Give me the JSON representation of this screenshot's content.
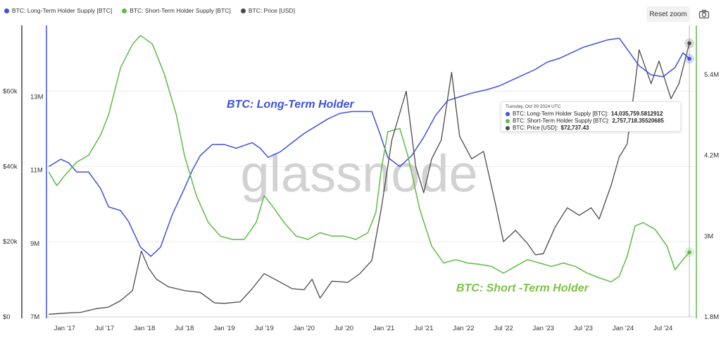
{
  "legend": [
    {
      "label": "BTC: Long-Term Holder Supply [BTC]",
      "color": "#3F51E0"
    },
    {
      "label": "BTC: Short-Term Holder Supply [BTC]",
      "color": "#5DBB46"
    },
    {
      "label": "BTC: Price [USD]",
      "color": "#4a4a4a"
    }
  ],
  "toolbar": {
    "reset_zoom": "Reset zoom",
    "camera_icon": "camera-icon"
  },
  "watermark": "glassnode",
  "annotations": {
    "lth": "BTC: Long-Term Holder",
    "sth": "BTC: Short -Term Holder"
  },
  "tooltip": {
    "date": "Tuesday, Oct 29 2024 UTC",
    "rows": [
      {
        "label": "BTC: Long-Term Holder Supply [BTC]:",
        "value": "14,035,759.5812912",
        "color": "#3F51E0"
      },
      {
        "label": "BTC: Short-Term Holder Supply [BTC]:",
        "value": "2,757,718.35520685",
        "color": "#5DBB46"
      },
      {
        "label": "BTC: Price [USD]:",
        "value": "$72,737.43",
        "color": "#4a4a4a"
      }
    ]
  },
  "chart_data": {
    "type": "line",
    "x_ticks": [
      "Jan '17",
      "Jul '17",
      "Jan '18",
      "Jul '18",
      "Jan '19",
      "Jul '19",
      "Jan '20",
      "Jul '20",
      "Jan '21",
      "Jul '21",
      "Jan '22",
      "Jul '22",
      "Jan '23",
      "Jul '23",
      "Jan '24",
      "Jul '24"
    ],
    "x_range": [
      "2016-10",
      "2024-11"
    ],
    "y_axes": {
      "price": {
        "ticks": [
          "$0",
          "$20k",
          "$40k",
          "$60k"
        ],
        "range": [
          0,
          77500
        ]
      },
      "lth": {
        "ticks": [
          "7M",
          "9M",
          "11M",
          "13M"
        ],
        "range": [
          7000000,
          14950000
        ]
      },
      "sth": {
        "ticks": [
          "1.8M",
          "3M",
          "4.2M",
          "5.4M"
        ],
        "range": [
          1800000,
          6130000
        ]
      }
    },
    "series": [
      {
        "name": "BTC: Long-Term Holder Supply [BTC]",
        "color": "#3F51E0",
        "values": [
          [
            2016.8,
            11.1
          ],
          [
            2016.95,
            11.3
          ],
          [
            2017.05,
            11.2
          ],
          [
            2017.15,
            10.95
          ],
          [
            2017.3,
            10.95
          ],
          [
            2017.45,
            10.5
          ],
          [
            2017.55,
            10.0
          ],
          [
            2017.7,
            9.9
          ],
          [
            2017.8,
            9.6
          ],
          [
            2017.95,
            8.9
          ],
          [
            2018.08,
            8.65
          ],
          [
            2018.2,
            8.9
          ],
          [
            2018.35,
            9.8
          ],
          [
            2018.5,
            10.5
          ],
          [
            2018.6,
            11.0
          ],
          [
            2018.7,
            11.4
          ],
          [
            2018.85,
            11.7
          ],
          [
            2019.0,
            11.7
          ],
          [
            2019.15,
            11.6
          ],
          [
            2019.35,
            11.75
          ],
          [
            2019.45,
            11.6
          ],
          [
            2019.55,
            11.35
          ],
          [
            2019.7,
            11.5
          ],
          [
            2019.85,
            11.75
          ],
          [
            2020.0,
            12.0
          ],
          [
            2020.15,
            12.2
          ],
          [
            2020.3,
            12.4
          ],
          [
            2020.45,
            12.55
          ],
          [
            2020.6,
            12.6
          ],
          [
            2020.72,
            12.6
          ],
          [
            2020.85,
            12.6
          ],
          [
            2020.95,
            12.0
          ],
          [
            2021.05,
            11.35
          ],
          [
            2021.2,
            11.1
          ],
          [
            2021.35,
            11.4
          ],
          [
            2021.5,
            11.9
          ],
          [
            2021.65,
            12.5
          ],
          [
            2021.8,
            12.9
          ],
          [
            2021.95,
            13.0
          ],
          [
            2022.1,
            13.1
          ],
          [
            2022.3,
            13.2
          ],
          [
            2022.45,
            13.3
          ],
          [
            2022.6,
            13.45
          ],
          [
            2022.75,
            13.6
          ],
          [
            2022.9,
            13.75
          ],
          [
            2023.05,
            13.95
          ],
          [
            2023.2,
            14.05
          ],
          [
            2023.35,
            14.2
          ],
          [
            2023.5,
            14.35
          ],
          [
            2023.65,
            14.45
          ],
          [
            2023.8,
            14.55
          ],
          [
            2023.95,
            14.6
          ],
          [
            2024.05,
            14.3
          ],
          [
            2024.2,
            13.85
          ],
          [
            2024.35,
            13.6
          ],
          [
            2024.5,
            13.55
          ],
          [
            2024.65,
            13.8
          ],
          [
            2024.75,
            14.2
          ],
          [
            2024.83,
            14.04
          ]
        ]
      },
      {
        "name": "BTC: Short-Term Holder Supply [BTC]",
        "color": "#5DBB46",
        "values": [
          [
            2016.8,
            3.95
          ],
          [
            2016.9,
            3.75
          ],
          [
            2017.0,
            3.9
          ],
          [
            2017.15,
            4.1
          ],
          [
            2017.3,
            4.2
          ],
          [
            2017.45,
            4.5
          ],
          [
            2017.55,
            4.8
          ],
          [
            2017.7,
            5.5
          ],
          [
            2017.85,
            5.85
          ],
          [
            2017.95,
            5.98
          ],
          [
            2018.1,
            5.85
          ],
          [
            2018.25,
            5.4
          ],
          [
            2018.4,
            4.8
          ],
          [
            2018.5,
            4.2
          ],
          [
            2018.65,
            3.6
          ],
          [
            2018.8,
            3.2
          ],
          [
            2018.95,
            3.0
          ],
          [
            2019.1,
            2.95
          ],
          [
            2019.25,
            2.95
          ],
          [
            2019.4,
            3.2
          ],
          [
            2019.5,
            3.6
          ],
          [
            2019.6,
            3.45
          ],
          [
            2019.75,
            3.2
          ],
          [
            2019.9,
            3.0
          ],
          [
            2020.05,
            2.95
          ],
          [
            2020.2,
            3.05
          ],
          [
            2020.35,
            3.0
          ],
          [
            2020.5,
            3.0
          ],
          [
            2020.65,
            2.95
          ],
          [
            2020.8,
            3.05
          ],
          [
            2020.9,
            3.35
          ],
          [
            2020.97,
            4.0
          ],
          [
            2021.05,
            4.55
          ],
          [
            2021.2,
            4.6
          ],
          [
            2021.3,
            4.2
          ],
          [
            2021.45,
            3.4
          ],
          [
            2021.6,
            2.85
          ],
          [
            2021.75,
            2.6
          ],
          [
            2021.9,
            2.65
          ],
          [
            2022.05,
            2.6
          ],
          [
            2022.2,
            2.58
          ],
          [
            2022.35,
            2.55
          ],
          [
            2022.5,
            2.45
          ],
          [
            2022.65,
            2.55
          ],
          [
            2022.8,
            2.65
          ],
          [
            2022.95,
            2.6
          ],
          [
            2023.1,
            2.55
          ],
          [
            2023.25,
            2.6
          ],
          [
            2023.4,
            2.55
          ],
          [
            2023.55,
            2.45
          ],
          [
            2023.7,
            2.38
          ],
          [
            2023.85,
            2.32
          ],
          [
            2023.95,
            2.4
          ],
          [
            2024.05,
            2.7
          ],
          [
            2024.15,
            3.15
          ],
          [
            2024.25,
            3.2
          ],
          [
            2024.4,
            3.1
          ],
          [
            2024.55,
            2.85
          ],
          [
            2024.65,
            2.5
          ],
          [
            2024.75,
            2.65
          ],
          [
            2024.83,
            2.76
          ]
        ]
      },
      {
        "name": "BTC: Price [USD]",
        "color": "#4a4a4a",
        "values": [
          [
            2016.8,
            700
          ],
          [
            2017.0,
            1000
          ],
          [
            2017.2,
            1200
          ],
          [
            2017.4,
            2200
          ],
          [
            2017.55,
            2600
          ],
          [
            2017.7,
            4300
          ],
          [
            2017.85,
            7000
          ],
          [
            2017.96,
            17500
          ],
          [
            2018.05,
            13000
          ],
          [
            2018.15,
            10000
          ],
          [
            2018.3,
            8000
          ],
          [
            2018.5,
            7000
          ],
          [
            2018.7,
            6500
          ],
          [
            2018.88,
            3700
          ],
          [
            2019.0,
            3600
          ],
          [
            2019.2,
            4000
          ],
          [
            2019.35,
            7500
          ],
          [
            2019.5,
            11500
          ],
          [
            2019.65,
            9800
          ],
          [
            2019.85,
            7500
          ],
          [
            2020.0,
            7200
          ],
          [
            2020.1,
            10000
          ],
          [
            2020.2,
            5000
          ],
          [
            2020.35,
            9500
          ],
          [
            2020.55,
            9200
          ],
          [
            2020.7,
            11500
          ],
          [
            2020.85,
            15000
          ],
          [
            2020.97,
            29000
          ],
          [
            2021.1,
            47000
          ],
          [
            2021.28,
            60000
          ],
          [
            2021.4,
            40000
          ],
          [
            2021.5,
            33000
          ],
          [
            2021.6,
            42000
          ],
          [
            2021.72,
            47000
          ],
          [
            2021.85,
            65000
          ],
          [
            2021.95,
            48000
          ],
          [
            2022.1,
            42000
          ],
          [
            2022.25,
            44000
          ],
          [
            2022.4,
            30000
          ],
          [
            2022.5,
            20000
          ],
          [
            2022.65,
            23000
          ],
          [
            2022.8,
            19500
          ],
          [
            2022.9,
            16500
          ],
          [
            2023.0,
            16800
          ],
          [
            2023.15,
            24000
          ],
          [
            2023.3,
            29000
          ],
          [
            2023.45,
            27000
          ],
          [
            2023.6,
            29000
          ],
          [
            2023.7,
            26000
          ],
          [
            2023.85,
            35000
          ],
          [
            2023.95,
            42500
          ],
          [
            2024.05,
            46000
          ],
          [
            2024.15,
            62000
          ],
          [
            2024.2,
            71000
          ],
          [
            2024.35,
            62000
          ],
          [
            2024.45,
            68000
          ],
          [
            2024.6,
            58000
          ],
          [
            2024.7,
            62000
          ],
          [
            2024.83,
            72737
          ]
        ]
      }
    ]
  }
}
